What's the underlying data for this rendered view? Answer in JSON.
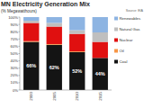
{
  "chart_data": {
    "type": "bar",
    "stacked": true,
    "title": "MN Electricity Generation Mix",
    "subtitle": "(% Megawatthours)",
    "annotations": [
      "Source: EIA"
    ],
    "categories": [
      "2000",
      "2005",
      "2010",
      "2015"
    ],
    "series": [
      {
        "name": "Coal",
        "color": "#141414",
        "values": [
          66,
          62,
          52,
          44
        ],
        "data_labels": true,
        "value_labels": [
          "66%",
          "62%",
          "52%",
          "44%"
        ]
      },
      {
        "name": "Oil",
        "color": "#f79646",
        "values": [
          1,
          1,
          1,
          0
        ]
      },
      {
        "name": "Nuclear",
        "color": "#e01010",
        "values": [
          25,
          24,
          24,
          22
        ]
      },
      {
        "name": "Natural Gas",
        "color": "#bfbfbf",
        "values": [
          3,
          5,
          5,
          13
        ]
      },
      {
        "name": "Renewables",
        "color": "#8db4e2",
        "values": [
          5,
          8,
          18,
          21
        ]
      }
    ],
    "ylim": [
      0,
      100
    ],
    "yticks": [
      {
        "value": 0,
        "label": "0%"
      },
      {
        "value": 10,
        "label": "10%"
      },
      {
        "value": 20,
        "label": "20%"
      },
      {
        "value": 30,
        "label": "30%"
      },
      {
        "value": 40,
        "label": "40%"
      },
      {
        "value": 50,
        "label": "50%"
      },
      {
        "value": 60,
        "label": "60%"
      },
      {
        "value": 70,
        "label": "70%"
      },
      {
        "value": 80,
        "label": "80%"
      },
      {
        "value": 90,
        "label": "90%"
      },
      {
        "value": 100,
        "label": "100%"
      }
    ],
    "grid": false,
    "legend": "right"
  }
}
